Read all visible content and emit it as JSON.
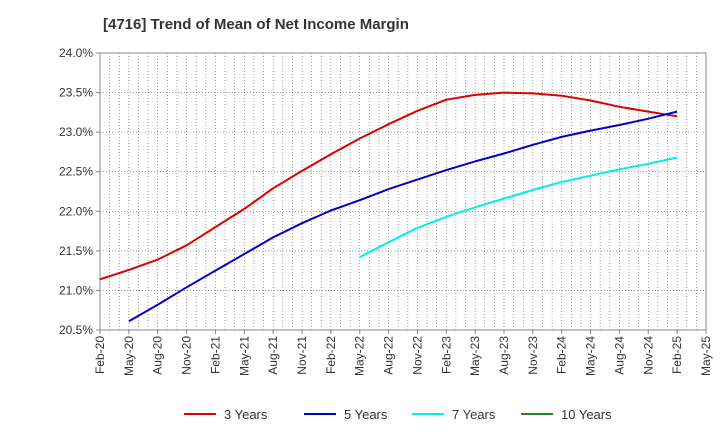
{
  "chart_data": {
    "type": "line",
    "title": "[4716]  Trend of Mean of Net Income Margin",
    "xlabel": "",
    "ylabel": "",
    "x_tick_labels": [
      "Feb-20",
      "May-20",
      "Aug-20",
      "Nov-20",
      "Feb-21",
      "May-21",
      "Aug-21",
      "Nov-21",
      "Feb-22",
      "May-22",
      "Aug-22",
      "Nov-22",
      "Feb-23",
      "May-23",
      "Aug-23",
      "Nov-23",
      "Feb-24",
      "May-24",
      "Aug-24",
      "Nov-24",
      "Feb-25",
      "May-25"
    ],
    "y_tick_labels": [
      "20.5%",
      "21.0%",
      "21.5%",
      "22.0%",
      "22.5%",
      "23.0%",
      "23.5%",
      "24.0%"
    ],
    "y_ticks": [
      20.5,
      21.0,
      21.5,
      22.0,
      22.5,
      23.0,
      23.5,
      24.0
    ],
    "ylim": [
      20.5,
      24.0
    ],
    "grid": true,
    "legend_position": "bottom",
    "series": [
      {
        "name": "3 Years",
        "color": "#dd0000",
        "x": [
          "Feb-20",
          "May-20",
          "Aug-20",
          "Nov-20",
          "Feb-21",
          "May-21",
          "Aug-21",
          "Nov-21",
          "Feb-22",
          "May-22",
          "Aug-22",
          "Nov-22",
          "Feb-23",
          "May-23",
          "Aug-23",
          "Nov-23",
          "Feb-24",
          "May-24",
          "Aug-24",
          "Nov-24",
          "Feb-25"
        ],
        "values": [
          21.14,
          21.26,
          21.39,
          21.57,
          21.8,
          22.03,
          22.29,
          22.51,
          22.72,
          22.92,
          23.1,
          23.27,
          23.41,
          23.47,
          23.5,
          23.49,
          23.46,
          23.4,
          23.32,
          23.26,
          23.2
        ]
      },
      {
        "name": "5 Years",
        "color": "#0000cc",
        "x": [
          "May-20",
          "Aug-20",
          "Nov-20",
          "Feb-21",
          "May-21",
          "Aug-21",
          "Nov-21",
          "Feb-22",
          "May-22",
          "Aug-22",
          "Nov-22",
          "Feb-23",
          "May-23",
          "Aug-23",
          "Nov-23",
          "Feb-24",
          "May-24",
          "Aug-24",
          "Nov-24",
          "Feb-25"
        ],
        "values": [
          20.61,
          20.82,
          21.04,
          21.25,
          21.46,
          21.67,
          21.85,
          22.01,
          22.14,
          22.28,
          22.4,
          22.52,
          22.63,
          22.73,
          22.84,
          22.94,
          23.02,
          23.09,
          23.17,
          23.26
        ]
      },
      {
        "name": "7 Years",
        "color": "#00eeee",
        "x": [
          "May-22",
          "Aug-22",
          "Nov-22",
          "Feb-23",
          "May-23",
          "Aug-23",
          "Nov-23",
          "Feb-24",
          "May-24",
          "Aug-24",
          "Nov-24",
          "Feb-25"
        ],
        "values": [
          21.42,
          21.61,
          21.79,
          21.93,
          22.05,
          22.16,
          22.27,
          22.37,
          22.45,
          22.53,
          22.6,
          22.68
        ]
      },
      {
        "name": "10 Years",
        "color": "#228822",
        "x": [],
        "values": []
      }
    ]
  }
}
